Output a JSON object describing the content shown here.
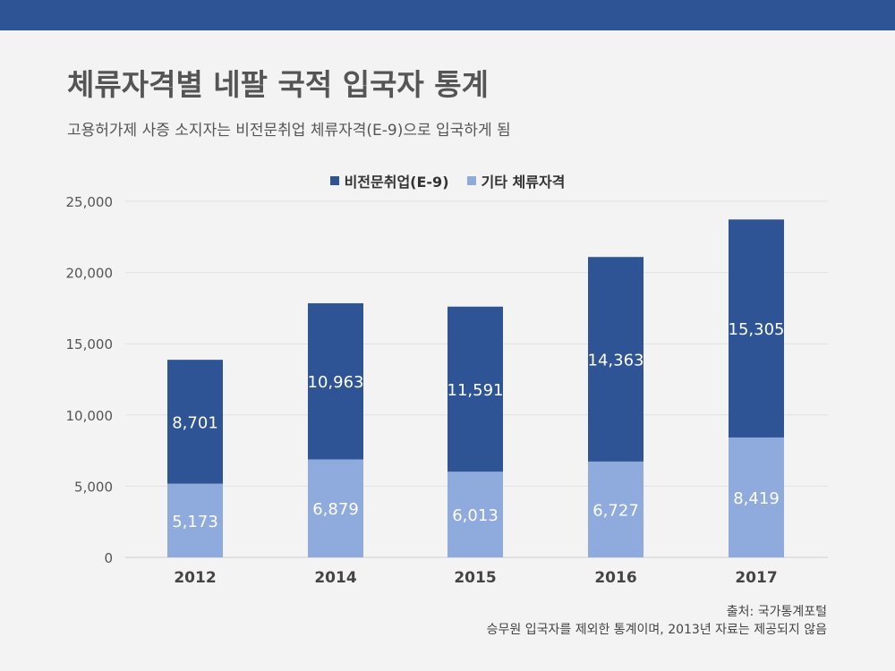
{
  "header": {
    "title": "체류자격별 네팔 국적 입국자 통계",
    "subtitle": "고용허가제 사증 소지자는 비전문취업 체류자격(E-9)으로 입국하게 됨"
  },
  "colors": {
    "topbar": "#2f5496",
    "e9": "#2f5496",
    "other": "#8faadc"
  },
  "chart_data": {
    "type": "bar",
    "stacked": true,
    "categories": [
      "2012",
      "2014",
      "2015",
      "2016",
      "2017"
    ],
    "series": [
      {
        "name": "기타 체류자격",
        "values": [
          5173,
          6879,
          6013,
          6727,
          8419
        ]
      },
      {
        "name": "비전문취업(E-9)",
        "values": [
          8701,
          10963,
          11591,
          14363,
          15305
        ]
      }
    ],
    "legend": [
      "비전문취업(E-9)",
      "기타 체류자격"
    ],
    "legend_position": "top-center",
    "ylim": [
      0,
      25000
    ],
    "yticks": [
      0,
      5000,
      10000,
      15000,
      20000,
      25000
    ],
    "ytick_labels": [
      "0",
      "5,000",
      "10,000",
      "15,000",
      "20,000",
      "25,000"
    ],
    "data_labels": {
      "other": [
        "5,173",
        "6,879",
        "6,013",
        "6,727",
        "8,419"
      ],
      "e9": [
        "8,701",
        "10,963",
        "11,591",
        "14,363",
        "15,305"
      ]
    },
    "grid": true
  },
  "footer": {
    "source": "출처: 국가통계포털",
    "note": "승무원 입국자를 제외한 통계이며, 2013년 자료는 제공되지 않음"
  }
}
